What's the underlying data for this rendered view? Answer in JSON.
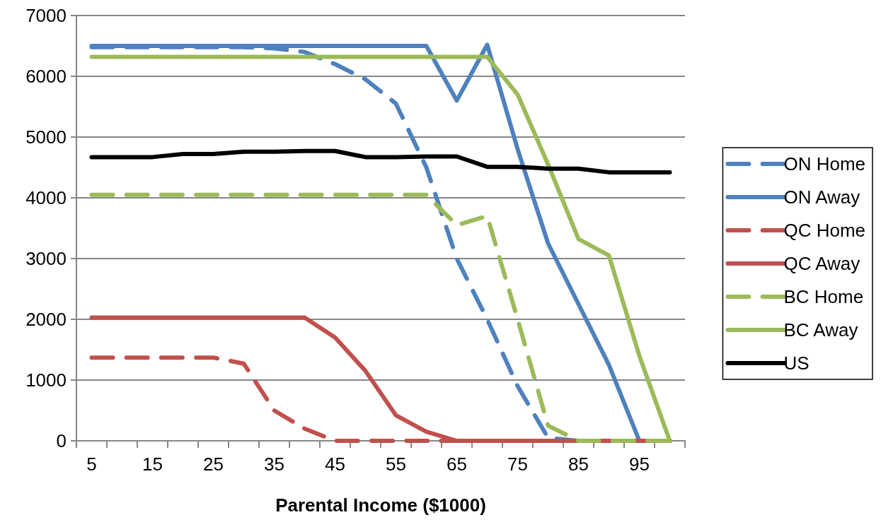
{
  "chart_data": {
    "type": "line",
    "xlabel": "Parental Income ($1000)",
    "categories": [
      "5",
      null,
      "15",
      null,
      "25",
      null,
      "35",
      null,
      "45",
      null,
      "55",
      null,
      "65",
      null,
      "75",
      null,
      "85",
      null,
      "95",
      null
    ],
    "ylim": [
      0,
      7000
    ],
    "yticks": [
      0,
      1000,
      2000,
      3000,
      4000,
      5000,
      6000,
      7000
    ],
    "grid": "y",
    "legend": "right",
    "marker": "none",
    "series": [
      {
        "name": "ON Home",
        "color": "#4f81bd",
        "line_style": "dashed",
        "values": [
          6480,
          6480,
          6480,
          6480,
          6480,
          6480,
          6460,
          6400,
          6200,
          5950,
          5550,
          4500,
          3000,
          2000,
          900,
          50,
          0,
          0,
          0,
          0
        ]
      },
      {
        "name": "ON Away",
        "color": "#4f81bd",
        "line_style": "solid",
        "values": [
          6500,
          6500,
          6500,
          6500,
          6500,
          6500,
          6500,
          6500,
          6500,
          6500,
          6500,
          6500,
          5600,
          6520,
          4800,
          3250,
          2250,
          1250,
          0,
          0
        ]
      },
      {
        "name": "QC Home",
        "color": "#c0504d",
        "line_style": "dashed",
        "values": [
          1370,
          1370,
          1370,
          1370,
          1370,
          1270,
          500,
          200,
          0,
          0,
          0,
          0,
          0,
          0,
          0,
          0,
          0,
          0,
          0,
          0
        ]
      },
      {
        "name": "QC Away",
        "color": "#c0504d",
        "line_style": "solid",
        "values": [
          2030,
          2030,
          2030,
          2030,
          2030,
          2030,
          2030,
          2030,
          1700,
          1150,
          420,
          150,
          0,
          0,
          0,
          0,
          0,
          0,
          0,
          0
        ]
      },
      {
        "name": "BC Home",
        "color": "#9bbb59",
        "line_style": "dashed",
        "values": [
          4050,
          4050,
          4050,
          4050,
          4050,
          4050,
          4050,
          4050,
          4050,
          4050,
          4050,
          4050,
          3550,
          3700,
          2000,
          250,
          0,
          0,
          0,
          0
        ]
      },
      {
        "name": "BC Away",
        "color": "#9bbb59",
        "line_style": "solid",
        "values": [
          6320,
          6320,
          6320,
          6320,
          6320,
          6320,
          6320,
          6320,
          6320,
          6320,
          6320,
          6320,
          6320,
          6320,
          5700,
          4550,
          3320,
          3050,
          1400,
          0
        ]
      },
      {
        "name": "US",
        "color": "#000000",
        "line_style": "solid",
        "values": [
          4670,
          4670,
          4670,
          4720,
          4720,
          4760,
          4760,
          4770,
          4770,
          4670,
          4670,
          4680,
          4680,
          4510,
          4510,
          4480,
          4480,
          4420,
          4420,
          4420
        ]
      }
    ]
  }
}
